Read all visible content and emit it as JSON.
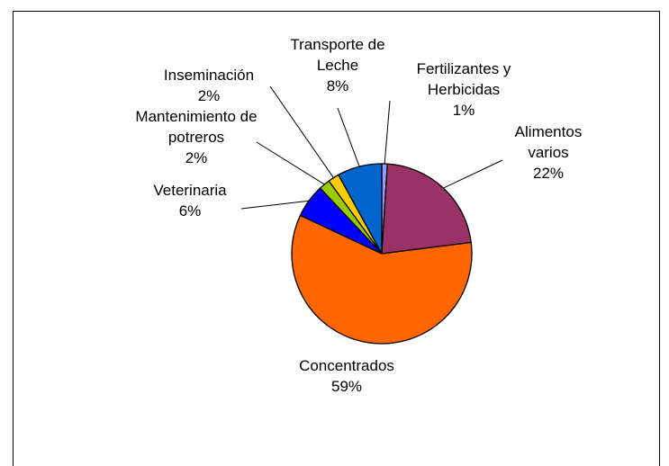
{
  "chart_data": {
    "type": "pie",
    "categories": [
      "Fertilizantes y Herbicidas",
      "Alimentos varios",
      "Concentrados",
      "Veterinaria",
      "Mantenimiento de potreros",
      "Inseminación",
      "Transporte de Leche"
    ],
    "values": [
      1,
      22,
      59,
      6,
      2,
      2,
      8
    ],
    "value_labels": [
      "1%",
      "22%",
      "59%",
      "6%",
      "2%",
      "2%",
      "8%"
    ],
    "colors": [
      "#9999ff",
      "#993366",
      "#ff6600",
      "#0000ff",
      "#99cc00",
      "#ffcc00",
      "#0066cc"
    ]
  }
}
